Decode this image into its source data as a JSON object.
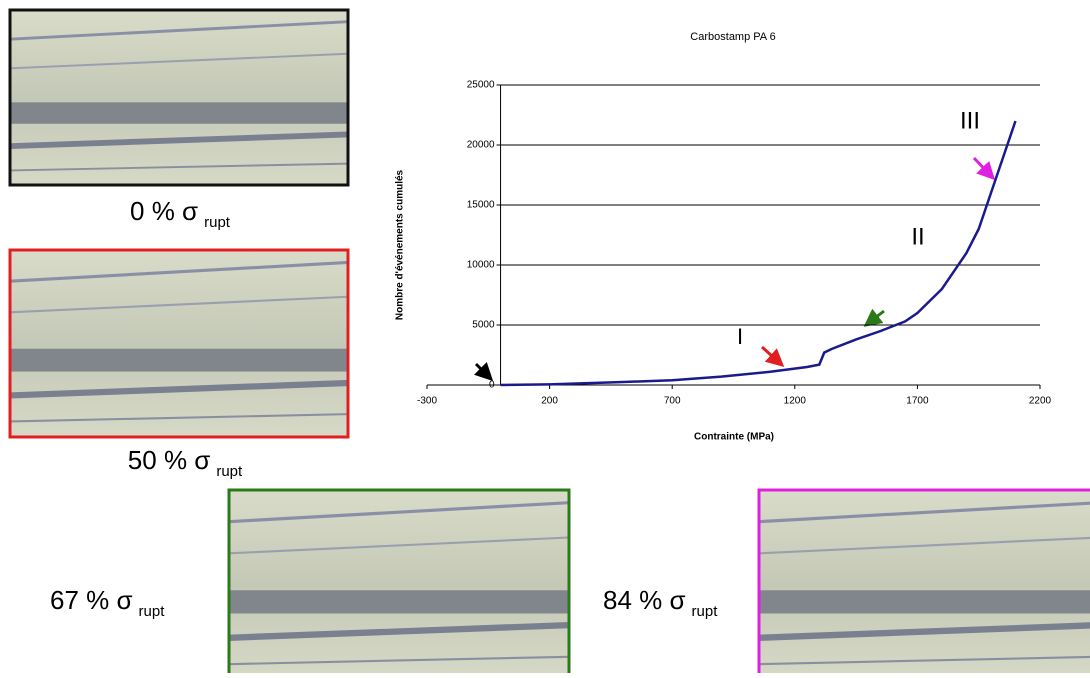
{
  "chart_data": {
    "type": "line",
    "title": "Carbostamp PA 6",
    "xlabel": "Contrainte (MPa)",
    "ylabel": "Nombre d'événements cumulés",
    "x": [
      0,
      200,
      500,
      700,
      900,
      1100,
      1250,
      1300,
      1320,
      1350,
      1450,
      1550,
      1650,
      1700,
      1800,
      1900,
      1950,
      2000,
      2050,
      2100
    ],
    "values": [
      0,
      50,
      250,
      400,
      700,
      1100,
      1500,
      1700,
      2700,
      3000,
      3800,
      4500,
      5300,
      6000,
      8000,
      11000,
      13000,
      16000,
      19000,
      22000
    ],
    "color": "#1a1a8c",
    "xlim": [
      -300,
      2200
    ],
    "xticks": [
      -300,
      200,
      700,
      1200,
      1700,
      2200
    ],
    "ylim": [
      0,
      25000
    ],
    "yticks": [
      0,
      5000,
      10000,
      15000,
      20000,
      25000
    ],
    "grid": true,
    "annotations": [
      "I",
      "II",
      "III"
    ]
  },
  "images": [
    {
      "caption": "0 % σ",
      "subscript": "rupt",
      "border": "#111111"
    },
    {
      "caption": "50 % σ",
      "subscript": "rupt",
      "border": "#e02020"
    },
    {
      "caption": "67 % σ",
      "subscript": "rupt",
      "border": "#2a7a1a"
    },
    {
      "caption": "84 % σ",
      "subscript": "rupt",
      "border": "#e020e0"
    }
  ]
}
